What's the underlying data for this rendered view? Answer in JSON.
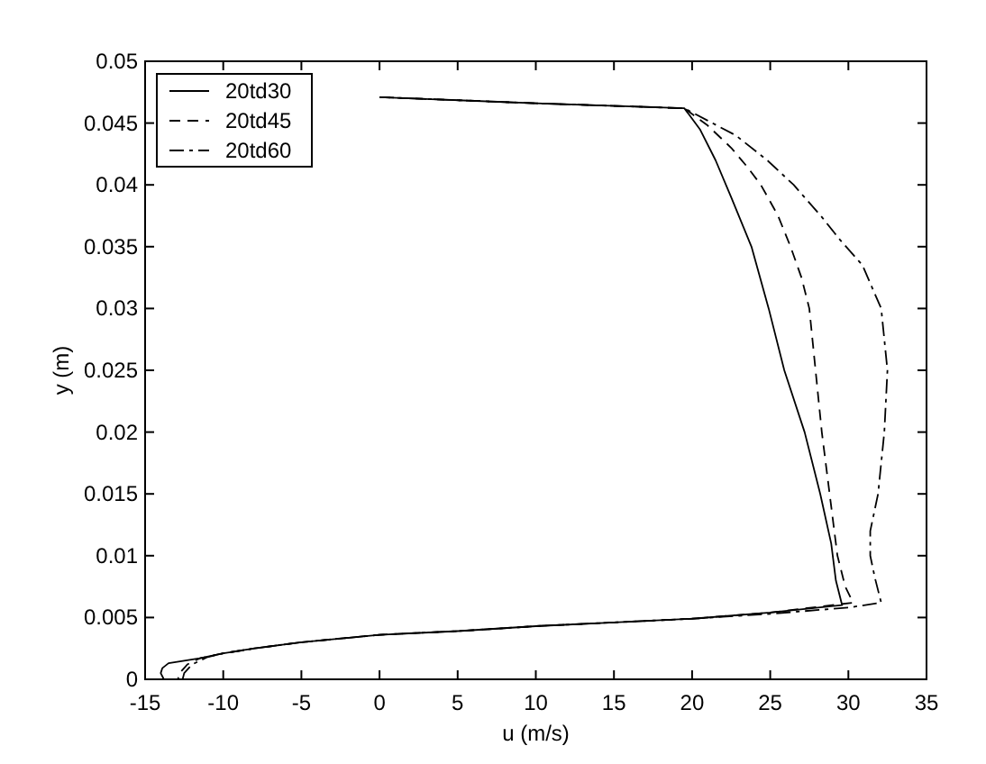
{
  "chart_data": {
    "type": "line",
    "xlabel": "u (m/s)",
    "ylabel": "y (m)",
    "xlim": [
      -15,
      35
    ],
    "ylim": [
      0,
      0.05
    ],
    "xticks": [
      -15,
      -10,
      -5,
      0,
      5,
      10,
      15,
      20,
      25,
      30,
      35
    ],
    "yticks": [
      0,
      0.005,
      0.01,
      0.015,
      0.02,
      0.025,
      0.03,
      0.035,
      0.04,
      0.045,
      0.05
    ],
    "grid": false,
    "legend": "top left",
    "series": [
      {
        "name": "20td30",
        "color": "#000000",
        "line_style": "solid",
        "x": [
          0,
          10,
          19.5,
          20.5,
          21.5,
          22.5,
          23.8,
          24.9,
          25.9,
          27.2,
          28.2,
          28.9,
          29.2,
          29.6,
          25,
          20,
          15,
          10,
          5,
          0,
          -5,
          -8,
          -10,
          -11.5,
          -12.5,
          -13.5,
          -13.9,
          -14,
          -13.8
        ],
        "values": [
          0.0471,
          0.0466,
          0.0462,
          0.0445,
          0.042,
          0.039,
          0.035,
          0.03,
          0.025,
          0.02,
          0.015,
          0.011,
          0.008,
          0.006,
          0.0054,
          0.0049,
          0.0046,
          0.0043,
          0.0039,
          0.0036,
          0.003,
          0.0025,
          0.0021,
          0.0017,
          0.0015,
          0.0013,
          0.0009,
          0.0005,
          0
        ]
      },
      {
        "name": "20td45",
        "color": "#000000",
        "line_style": "dashed",
        "x": [
          0,
          10,
          19.5,
          21,
          22.5,
          23.5,
          24.4,
          25.5,
          26.3,
          27,
          27.5,
          27.9,
          28.3,
          28.8,
          29.3,
          29.8,
          30.3,
          25,
          20,
          15,
          10,
          5,
          0,
          -5,
          -8,
          -10,
          -11.5,
          -12.3,
          -12.8,
          -12.9
        ],
        "values": [
          0.0471,
          0.0466,
          0.0462,
          0.0448,
          0.043,
          0.0415,
          0.04,
          0.0375,
          0.035,
          0.0325,
          0.03,
          0.025,
          0.02,
          0.015,
          0.01,
          0.0075,
          0.0062,
          0.0054,
          0.0049,
          0.0046,
          0.0043,
          0.0039,
          0.0036,
          0.003,
          0.0025,
          0.0021,
          0.0017,
          0.0012,
          0.0005,
          0
        ]
      },
      {
        "name": "20td60",
        "color": "#000000",
        "line_style": "dashdot",
        "x": [
          0,
          10,
          19.5,
          21,
          22.8,
          24.8,
          26.5,
          28.3,
          29.5,
          30.9,
          32.1,
          32.5,
          32.3,
          31.9,
          31.4,
          31.4,
          31.7,
          32.1,
          30,
          25,
          20,
          15,
          10,
          5,
          0,
          -5,
          -8,
          -10,
          -11,
          -12,
          -12.5,
          -12.6
        ],
        "values": [
          0.0471,
          0.0466,
          0.0462,
          0.0452,
          0.044,
          0.042,
          0.04,
          0.0374,
          0.0355,
          0.0335,
          0.03,
          0.025,
          0.02,
          0.015,
          0.012,
          0.01,
          0.0082,
          0.0062,
          0.0058,
          0.0053,
          0.0049,
          0.0046,
          0.0043,
          0.0039,
          0.0036,
          0.003,
          0.0025,
          0.0021,
          0.0018,
          0.0012,
          0.0005,
          0
        ]
      }
    ]
  }
}
